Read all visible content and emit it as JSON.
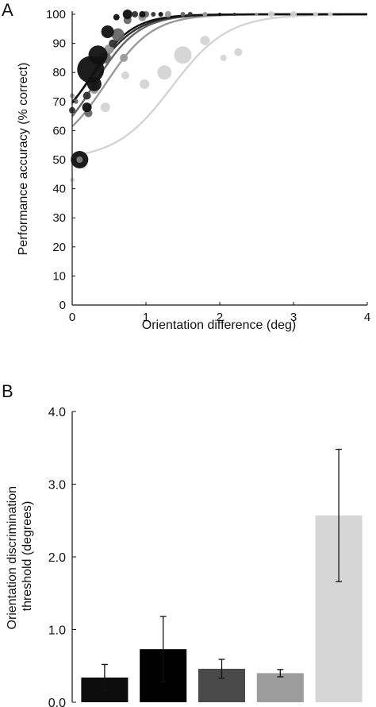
{
  "chart_data": [
    {
      "panel_label": "A",
      "type": "scatter",
      "xlabel": "Orientation difference (deg)",
      "ylabel": "Performance accuracy (% correct)",
      "xlim": [
        0,
        4
      ],
      "ylim": [
        0,
        100
      ],
      "xticks": [
        "0",
        "1",
        "2",
        "3",
        "4"
      ],
      "yticks": [
        "0",
        "10",
        "20",
        "30",
        "40",
        "50",
        "60",
        "70",
        "80",
        "90",
        "100"
      ],
      "grid": false,
      "series": [
        {
          "color": "#111111",
          "fit": {
            "a": 0.25,
            "b": 0.28,
            "p0": 57
          },
          "points": [
            [
              0.1,
              50,
              11
            ],
            [
              0.2,
              68,
              6
            ],
            [
              0.3,
              76,
              9
            ],
            [
              0.25,
              81,
              17
            ],
            [
              0.35,
              86,
              12
            ],
            [
              0.48,
              94,
              8
            ],
            [
              0.6,
              99,
              4
            ],
            [
              0.75,
              100,
              6
            ],
            [
              0.95,
              100,
              4
            ],
            [
              1.2,
              100,
              3
            ],
            [
              2.0,
              100,
              2
            ]
          ]
        },
        {
          "color": "#333333",
          "fit": {
            "a": 0.28,
            "b": 0.3,
            "p0": 58
          },
          "points": [
            [
              0.0,
              67,
              4
            ],
            [
              0.2,
              72,
              5
            ],
            [
              0.38,
              84,
              6
            ],
            [
              0.55,
              90,
              5
            ],
            [
              0.85,
              100,
              4
            ],
            [
              1.1,
              100,
              3
            ],
            [
              1.6,
              100,
              3
            ],
            [
              2.2,
              100,
              2
            ]
          ]
        },
        {
          "color": "#666666",
          "fit": {
            "a": 0.3,
            "b": 0.3,
            "p0": 52
          },
          "points": [
            [
              0.05,
              70,
              3
            ],
            [
              0.22,
              66,
              5
            ],
            [
              0.45,
              85,
              7
            ],
            [
              0.62,
              93,
              8
            ],
            [
              0.75,
              98,
              5
            ],
            [
              1.0,
              100,
              4
            ],
            [
              1.5,
              100,
              3
            ]
          ]
        },
        {
          "color": "#9a9a9a",
          "fit": {
            "a": 0.45,
            "b": 0.32,
            "p0": 52
          },
          "points": [
            [
              0.0,
              72,
              3
            ],
            [
              0.3,
              74,
              5
            ],
            [
              0.5,
              88,
              6
            ],
            [
              0.7,
              85,
              5
            ],
            [
              0.95,
              99,
              5
            ],
            [
              1.3,
              100,
              4
            ],
            [
              1.8,
              100,
              3
            ],
            [
              2.5,
              100,
              2
            ]
          ]
        },
        {
          "color": "#d4d4d4",
          "fit": {
            "a": 1.35,
            "b": 0.38,
            "p0": 50
          },
          "points": [
            [
              0.0,
              43,
              3
            ],
            [
              0.15,
              48,
              4
            ],
            [
              0.45,
              68,
              6
            ],
            [
              0.72,
              79,
              5
            ],
            [
              0.98,
              76,
              6
            ],
            [
              1.25,
              80,
              9
            ],
            [
              1.5,
              86,
              11
            ],
            [
              1.8,
              91,
              6
            ],
            [
              2.05,
              85,
              4
            ],
            [
              2.25,
              87,
              5
            ],
            [
              2.7,
              100,
              4
            ],
            [
              3.0,
              100,
              4
            ],
            [
              3.3,
              100,
              3
            ],
            [
              3.5,
              100,
              3
            ]
          ]
        }
      ]
    },
    {
      "panel_label": "B",
      "type": "bar",
      "ylabel": "Orientation discrimination threshold (degrees)",
      "ylim": [
        0,
        4
      ],
      "yticks": [
        "0.0",
        "1.0",
        "2.0",
        "3.0",
        "4.0"
      ],
      "grid": false,
      "values": [
        0.34,
        0.73,
        0.46,
        0.4,
        2.57
      ],
      "errors": [
        0.18,
        0.45,
        0.13,
        0.05,
        0.91
      ],
      "colors": [
        "#0d0d0d",
        "#000000",
        "#4a4a4a",
        "#9c9c9c",
        "#d6d6d6"
      ]
    }
  ]
}
